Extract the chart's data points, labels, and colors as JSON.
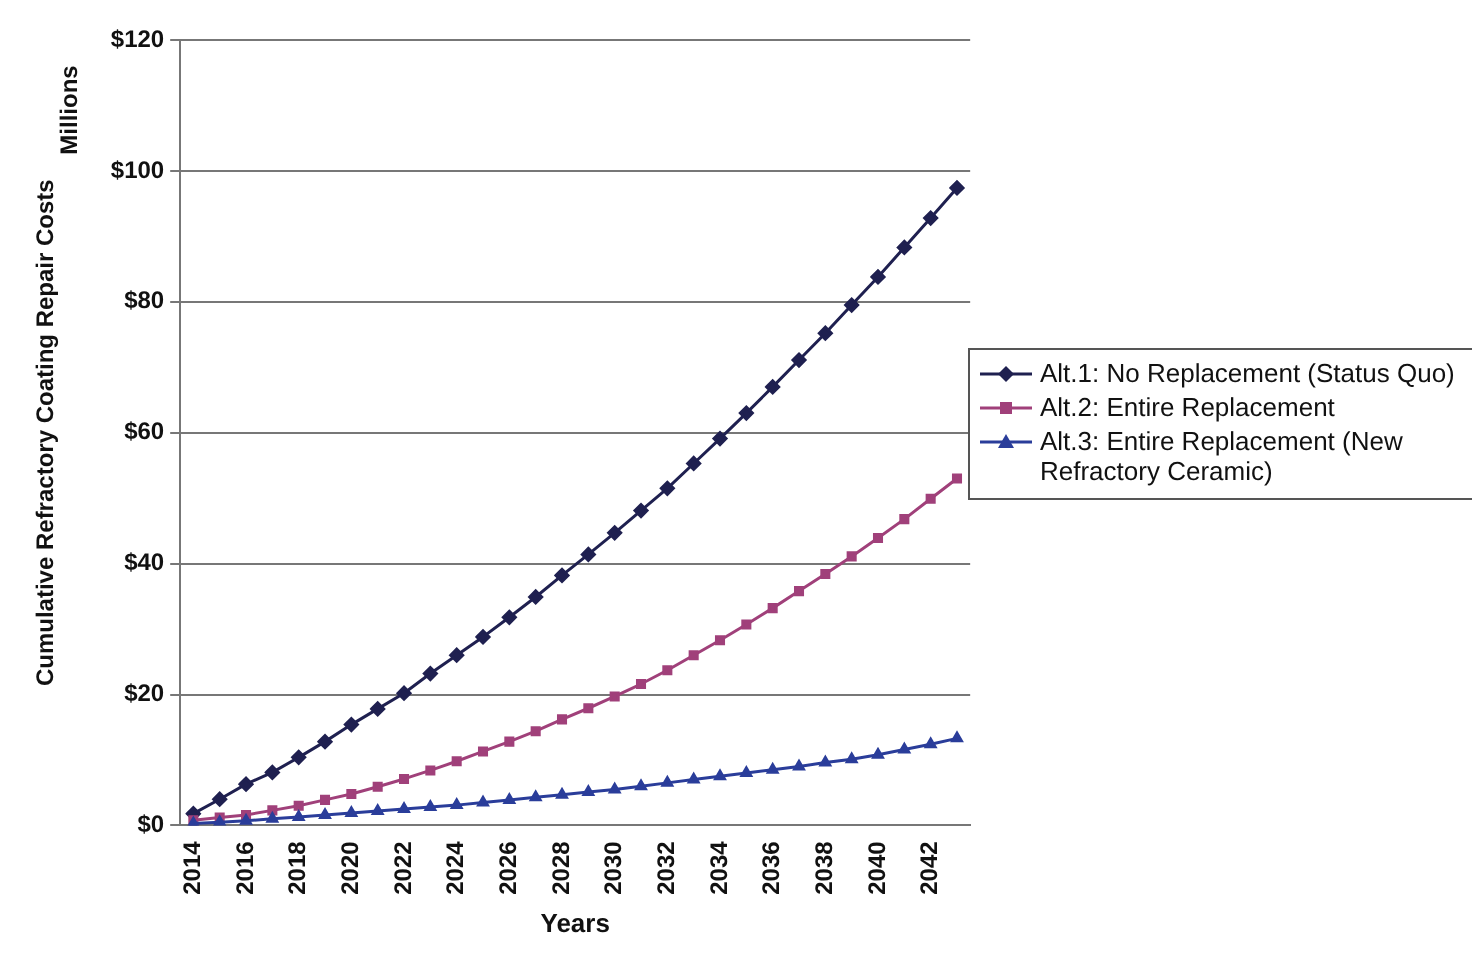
{
  "chart_data": {
    "type": "line",
    "xlabel": "Years",
    "ylabel": "Cumulative Refractory Coating Repair Costs",
    "annotations": [
      "Millions"
    ],
    "categories": [
      "2014",
      null,
      "2016",
      null,
      "2018",
      null,
      "2020",
      null,
      "2022",
      null,
      "2024",
      null,
      "2026",
      null,
      "2028",
      null,
      "2030",
      null,
      "2032",
      null,
      "2034",
      null,
      "2036",
      null,
      "2038",
      null,
      "2040",
      null,
      "2042",
      null
    ],
    "series": [
      {
        "name": "Alt.1: No Replacement (Status Quo)",
        "color": "#1f2050",
        "marker": "diamond",
        "values": [
          1.8,
          4,
          6.3,
          8.1,
          10.4,
          12.8,
          15.4,
          17.8,
          20.2,
          23.2,
          26,
          28.8,
          31.8,
          34.9,
          38.2,
          41.4,
          44.7,
          48.1,
          51.5,
          55.3,
          59.1,
          63,
          67,
          71.1,
          75.2,
          79.5,
          83.8,
          88.3,
          92.8,
          97.4
        ]
      },
      {
        "name": "Alt.2: Entire Replacement",
        "color": "#a0407a",
        "marker": "square",
        "values": [
          0.8,
          1.2,
          1.6,
          2.3,
          3,
          3.9,
          4.8,
          5.9,
          7.1,
          8.4,
          9.8,
          11.3,
          12.8,
          14.4,
          16.2,
          17.9,
          19.7,
          21.6,
          23.7,
          26,
          28.3,
          30.7,
          33.2,
          35.8,
          38.4,
          41.1,
          43.9,
          46.8,
          49.9,
          53
        ]
      },
      {
        "name": "Alt.3: Entire Replacement (New Refractory Ceramic)",
        "color": "#2a3d9a",
        "marker": "triangle",
        "values": [
          0.3,
          0.5,
          0.7,
          1,
          1.3,
          1.6,
          1.9,
          2.2,
          2.5,
          2.8,
          3.1,
          3.5,
          3.9,
          4.3,
          4.7,
          5.1,
          5.5,
          6,
          6.5,
          7,
          7.5,
          8,
          8.5,
          9,
          9.6,
          10.1,
          10.8,
          11.6,
          12.4,
          13.3
        ]
      }
    ],
    "ylim": [
      0,
      120
    ],
    "yticks": [
      {
        "value": 0,
        "label": "$0"
      },
      {
        "value": 20,
        "label": "$20"
      },
      {
        "value": 40,
        "label": "$40"
      },
      {
        "value": 60,
        "label": "$60"
      },
      {
        "value": 80,
        "label": "$80"
      },
      {
        "value": 100,
        "label": "$100"
      },
      {
        "value": 120,
        "label": "$120"
      }
    ],
    "grid": "y",
    "legend": "right",
    "line_style": "solid"
  }
}
